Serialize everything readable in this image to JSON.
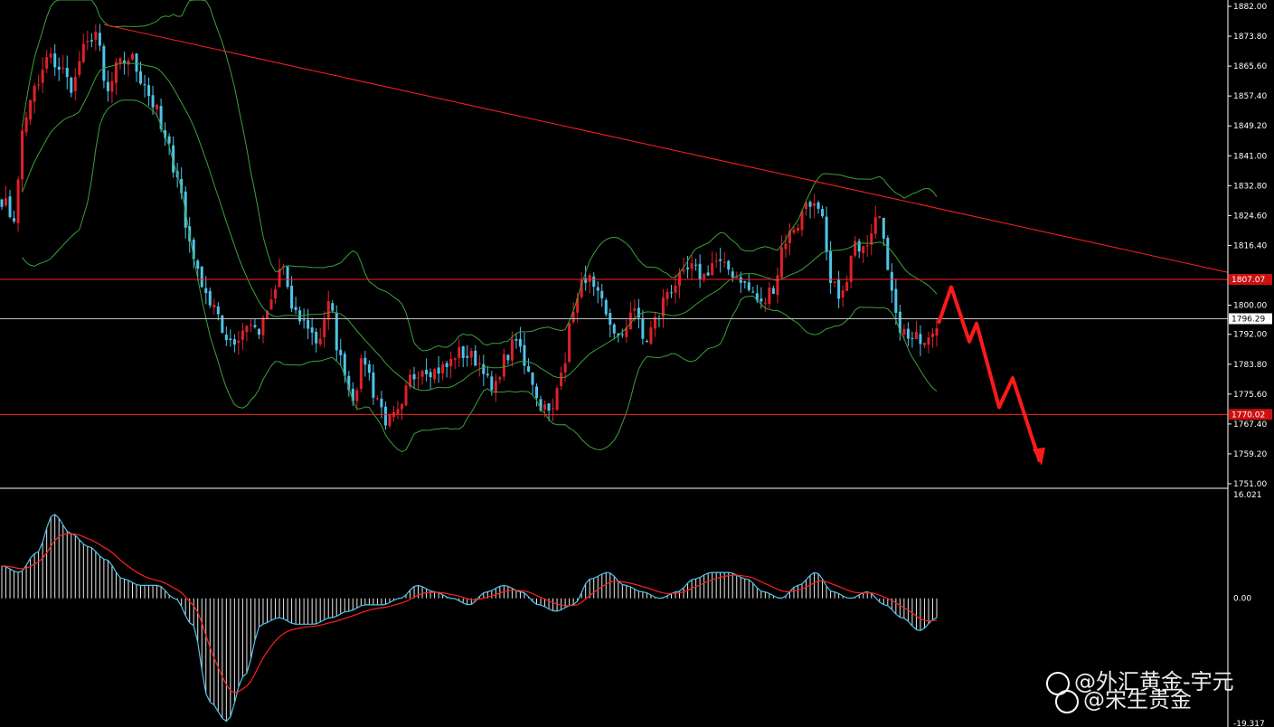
{
  "chart_data": [
    {
      "type": "candlestick",
      "title": "",
      "ylim": [
        1751.0,
        1882.0
      ],
      "y_ticks": [
        "1882.00",
        "1873.80",
        "1865.60",
        "1857.40",
        "1849.20",
        "1841.00",
        "1832.80",
        "1824.60",
        "1816.40",
        "1800.00",
        "1792.00",
        "1783.80",
        "1775.60",
        "1767.40",
        "1759.20",
        "1751.00"
      ],
      "horizontal_lines": [
        {
          "value": 1807.07,
          "label": "1807.07",
          "color": "#ff2020",
          "tag_bg": "#cc1010"
        },
        {
          "value": 1796.29,
          "label": "1796.29",
          "color": "#c0c0c0",
          "tag_bg": "#ffffff"
        },
        {
          "value": 1770.02,
          "label": "1770.02",
          "color": "#ff2020",
          "tag_bg": "#cc1010"
        }
      ],
      "trendline": {
        "from_value": 1877.0,
        "to_value": 1809.0,
        "color": "#ff2020"
      },
      "forecast_path": [
        1795,
        1805,
        1790,
        1795,
        1772,
        1780,
        1757
      ],
      "candle_anchors": [
        1829,
        1824,
        1852,
        1860,
        1868,
        1865,
        1860,
        1870,
        1875,
        1858,
        1866,
        1868,
        1862,
        1855,
        1845,
        1836,
        1818,
        1807,
        1800,
        1792,
        1790,
        1795,
        1793,
        1800,
        1811,
        1797,
        1795,
        1790,
        1800,
        1785,
        1775,
        1785,
        1775,
        1768,
        1770,
        1780,
        1783,
        1782,
        1783,
        1787,
        1786,
        1784,
        1776,
        1785,
        1790,
        1783,
        1773,
        1770,
        1784,
        1800,
        1808,
        1802,
        1795,
        1790,
        1800,
        1790,
        1796,
        1804,
        1807,
        1810,
        1808,
        1812,
        1810,
        1808,
        1804,
        1800,
        1805,
        1818,
        1822,
        1829,
        1825,
        1805,
        1803,
        1816,
        1818,
        1827,
        1806,
        1793,
        1791,
        1789,
        1794
      ],
      "bands_color": "#3ca03c",
      "up_color": "#e0202a",
      "down_color": "#4fc3e8"
    },
    {
      "type": "histogram",
      "title": "",
      "ylim": [
        -19.317,
        16.021
      ],
      "y_ticks": [
        "16.021",
        "0.00",
        "-19.317"
      ],
      "macd_anchors": [
        5,
        4,
        7,
        13,
        10,
        8,
        6,
        3,
        2,
        2,
        0,
        -4,
        -16,
        -19,
        -12,
        -4,
        -3,
        -4,
        -4,
        -3,
        -2,
        -1,
        -1,
        0,
        2,
        1,
        0,
        -1,
        1,
        2,
        1,
        -1,
        -2,
        -1,
        3,
        4,
        2,
        1,
        0,
        1,
        3,
        4,
        4,
        3,
        1,
        0,
        2,
        4,
        1,
        0,
        1,
        -1,
        -3,
        -5,
        -3
      ],
      "signal_color": "#ff2020",
      "line_color": "#4fc3e8"
    }
  ],
  "watermark": {
    "line1": "@外汇黄金-宇元",
    "line2": "@宋生贵金"
  }
}
